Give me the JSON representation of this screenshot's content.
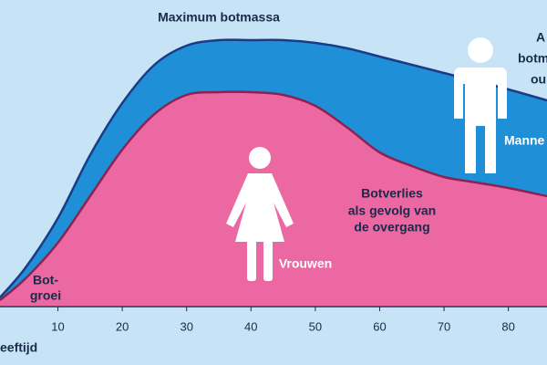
{
  "chart_data": {
    "type": "area",
    "xlabel": "eeftijd",
    "x": [
      1,
      5,
      10,
      15,
      20,
      25,
      30,
      35,
      40,
      45,
      50,
      55,
      60,
      65,
      70,
      75,
      80,
      86
    ],
    "xlim": [
      1,
      86
    ],
    "xticks": [
      10,
      20,
      30,
      40,
      50,
      60,
      70,
      80
    ],
    "ylim": [
      0,
      100
    ],
    "series": [
      {
        "name": "Manne",
        "color": "#1f8fd8",
        "line": "#1b3b86",
        "values": [
          3,
          14,
          32,
          55,
          74,
          88,
          95,
          97,
          97,
          97,
          96,
          94,
          91,
          88,
          85,
          82,
          79,
          75
        ]
      },
      {
        "name": "Vrouwen",
        "color": "#ec68a2",
        "line": "#8c2250",
        "values": [
          2,
          10,
          23,
          40,
          57,
          70,
          77,
          78,
          78,
          77,
          73,
          65,
          56,
          51,
          47,
          45,
          43,
          40
        ]
      }
    ],
    "annotations": [
      "Maximum botmassa",
      "Bot-",
      "groei",
      "Botverlies",
      "als gevolg van",
      "de overgang",
      "A",
      "botm",
      "ou"
    ]
  }
}
